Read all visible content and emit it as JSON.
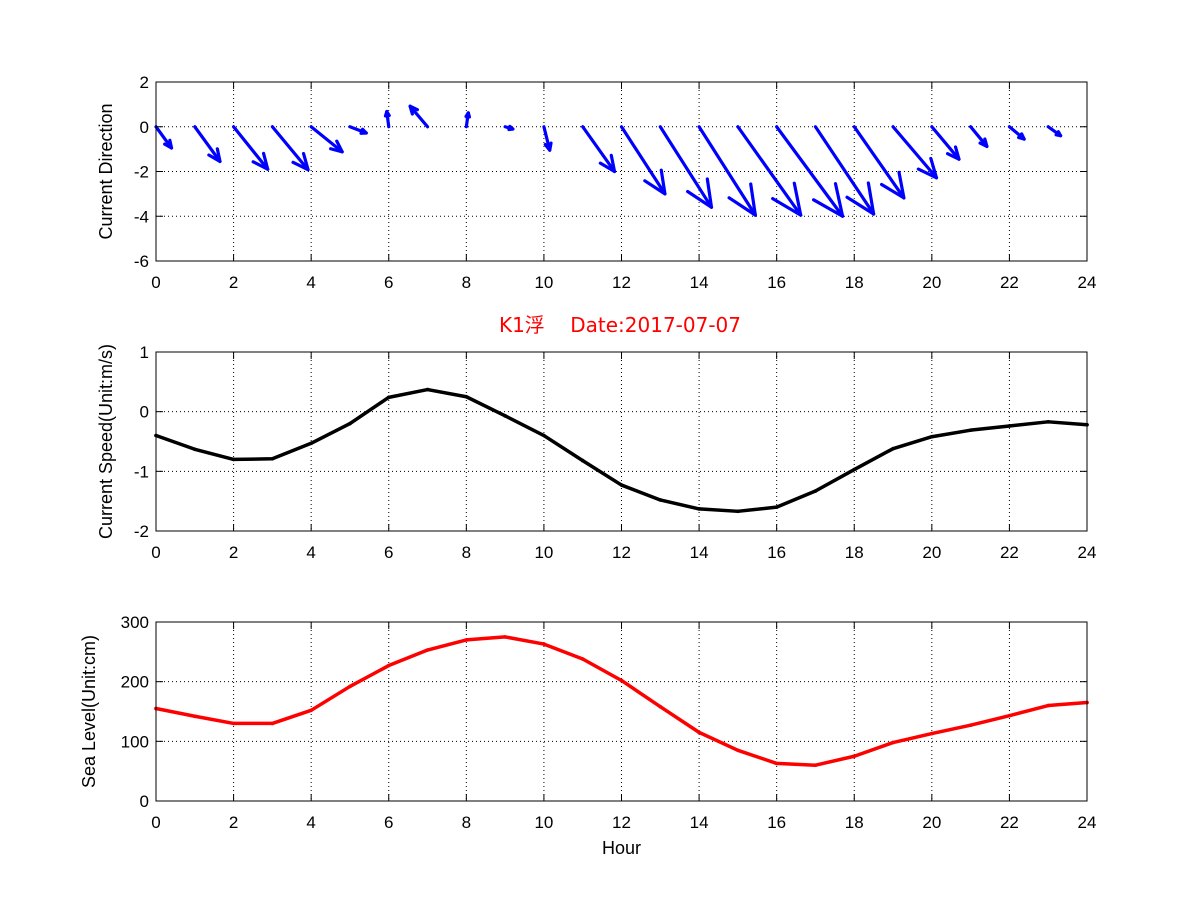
{
  "title": "K1浮    Date:2017-07-07",
  "colors": {
    "title": "#ff0000",
    "quiver": "#0000ff",
    "speed": "#000000",
    "sea_level": "#ff0000"
  },
  "chart_data": [
    {
      "type": "quiver",
      "ylabel": "Current Direction",
      "xlabel": "",
      "xlim": [
        0,
        24
      ],
      "ylim": [
        -6,
        2
      ],
      "xticks": [
        0,
        2,
        4,
        6,
        8,
        10,
        12,
        14,
        16,
        18,
        20,
        22,
        24
      ],
      "yticks": [
        -6,
        -4,
        -2,
        0,
        2
      ],
      "grid": true,
      "x": [
        0,
        1,
        2,
        3,
        4,
        5,
        6,
        7,
        8,
        9,
        10,
        11,
        12,
        13,
        14,
        15,
        16,
        17,
        18,
        19,
        20,
        21,
        22,
        23
      ],
      "u": [
        0.4,
        0.65,
        0.88,
        0.92,
        0.8,
        0.42,
        -0.05,
        -0.45,
        0.05,
        0.2,
        0.15,
        0.82,
        1.12,
        1.32,
        1.45,
        1.62,
        1.7,
        1.5,
        1.28,
        1.12,
        0.7,
        0.42,
        0.38,
        0.32
      ],
      "v": [
        -0.95,
        -1.55,
        -1.9,
        -1.92,
        -1.12,
        -0.28,
        0.68,
        0.92,
        0.62,
        -0.1,
        -1.05,
        -2.0,
        -3.0,
        -3.6,
        -3.95,
        -3.95,
        -4.0,
        -3.9,
        -3.18,
        -2.28,
        -1.45,
        -0.88,
        -0.55,
        -0.4
      ]
    },
    {
      "type": "line",
      "ylabel": "Current Speed(Unit:m/s)",
      "xlabel": "",
      "xlim": [
        0,
        24
      ],
      "ylim": [
        -2,
        1
      ],
      "xticks": [
        0,
        2,
        4,
        6,
        8,
        10,
        12,
        14,
        16,
        18,
        20,
        22,
        24
      ],
      "yticks": [
        -2,
        -1,
        0,
        1
      ],
      "grid": true,
      "x": [
        0,
        1,
        2,
        3,
        4,
        5,
        6,
        7,
        8,
        9,
        10,
        11,
        12,
        13,
        14,
        15,
        16,
        17,
        18,
        19,
        20,
        21,
        22,
        23,
        24
      ],
      "values": [
        -0.4,
        -0.63,
        -0.8,
        -0.79,
        -0.53,
        -0.2,
        0.24,
        0.37,
        0.25,
        -0.07,
        -0.4,
        -0.82,
        -1.23,
        -1.48,
        -1.63,
        -1.67,
        -1.6,
        -1.33,
        -0.97,
        -0.62,
        -0.42,
        -0.31,
        -0.24,
        -0.17,
        -0.22
      ]
    },
    {
      "type": "line",
      "ylabel": "Sea Level(Unit:cm)",
      "xlabel": "Hour",
      "xlim": [
        0,
        24
      ],
      "ylim": [
        0,
        300
      ],
      "xticks": [
        0,
        2,
        4,
        6,
        8,
        10,
        12,
        14,
        16,
        18,
        20,
        22,
        24
      ],
      "yticks": [
        0,
        100,
        200,
        300
      ],
      "grid": true,
      "x": [
        0,
        1,
        2,
        3,
        4,
        5,
        6,
        7,
        8,
        9,
        10,
        11,
        12,
        13,
        14,
        15,
        16,
        17,
        18,
        19,
        20,
        21,
        22,
        23,
        24
      ],
      "values": [
        155,
        142,
        130,
        130,
        152,
        192,
        227,
        253,
        270,
        275,
        263,
        238,
        202,
        158,
        115,
        85,
        63,
        60,
        75,
        98,
        113,
        127,
        143,
        160,
        165
      ]
    }
  ]
}
